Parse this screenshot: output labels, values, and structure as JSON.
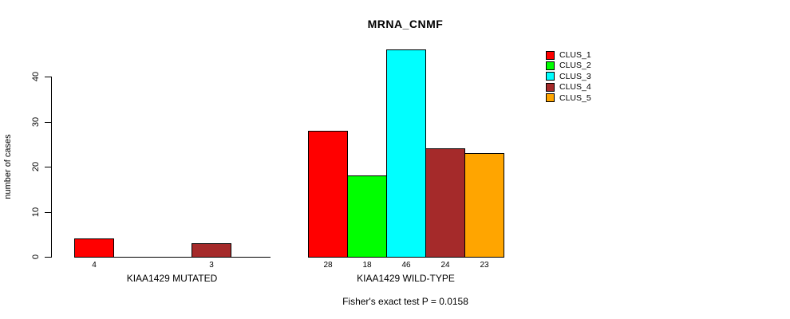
{
  "chart_data": {
    "type": "bar",
    "title": "MRNA_CNMF",
    "ylabel": "number of cases",
    "xlabel": "",
    "ylim": [
      0,
      46
    ],
    "yticks": [
      0,
      10,
      20,
      30,
      40
    ],
    "grid": false,
    "legend_position": "right",
    "series": [
      {
        "name": "CLUS_1",
        "color": "#FF0000"
      },
      {
        "name": "CLUS_2",
        "color": "#00FF00"
      },
      {
        "name": "CLUS_3",
        "color": "#00FFFF"
      },
      {
        "name": "CLUS_4",
        "color": "#A52A2A"
      },
      {
        "name": "CLUS_5",
        "color": "#FFA500"
      }
    ],
    "groups": [
      {
        "label": "KIAA1429 MUTATED",
        "values": [
          4,
          0,
          0,
          3,
          0
        ]
      },
      {
        "label": "KIAA1429 WILD-TYPE",
        "values": [
          28,
          18,
          46,
          24,
          23
        ]
      }
    ],
    "bar_value_labels_shown_only_when_nonzero": true,
    "caption": "Fisher's exact test P = 0.0158"
  }
}
